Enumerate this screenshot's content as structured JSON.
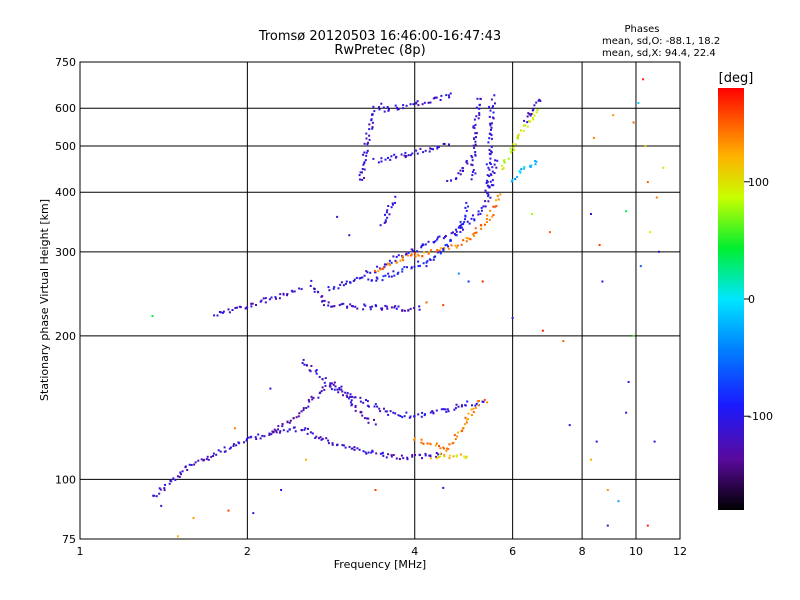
{
  "chart_data": {
    "type": "scatter",
    "title": "Tromsø 20120503 16:46:00-16:47:43",
    "subtitle": "RwPretec (8p)",
    "xlabel": "Frequency [MHz]",
    "ylabel": "Stationary phase Virtual Height [km]",
    "x_scale": "log",
    "y_scale": "log",
    "xlim": [
      1,
      12
    ],
    "ylim": [
      75,
      750
    ],
    "x_ticks": [
      1,
      2,
      4,
      6,
      8,
      10,
      12
    ],
    "y_ticks": [
      75,
      100,
      200,
      300,
      400,
      500,
      600,
      750
    ],
    "grid": true,
    "phases_box": {
      "title": "Phases",
      "line1": "mean, sd,O: -88.1, 18.2",
      "line2": "mean, sd,X:  94.4, 22.4"
    },
    "colorbar": {
      "label": "[deg]",
      "range": [
        -180,
        180
      ],
      "ticks": [
        100,
        0,
        -100
      ]
    },
    "traces": [
      {
        "x": [
          1.35,
          1.6,
          1.9,
          2.1,
          2.3,
          2.5,
          2.7,
          3.0,
          3.3,
          3.6,
          3.9,
          4.2,
          4.5
        ],
        "y": [
          92,
          108,
          118,
          123,
          126,
          128,
          122,
          117,
          114,
          112,
          111,
          112,
          113
        ],
        "phase": -115
      },
      {
        "x": [
          2.5,
          2.7,
          3.0,
          3.3,
          3.6,
          3.9,
          4.2,
          4.6,
          5.0,
          5.4
        ],
        "y": [
          178,
          165,
          152,
          144,
          138,
          136,
          137,
          140,
          144,
          144
        ],
        "phase": -110
      },
      {
        "x": [
          2.2,
          2.4,
          2.6,
          2.8,
          3.0,
          3.2,
          3.4
        ],
        "y": [
          125,
          133,
          145,
          158,
          150,
          138,
          130
        ],
        "phase": -120
      },
      {
        "x": [
          4.3,
          4.6,
          5.0
        ],
        "y": [
          112,
          112,
          112
        ],
        "phase": 110
      },
      {
        "x": [
          4.0,
          4.3,
          4.6,
          5.2,
          5.4
        ],
        "y": [
          121,
          118,
          116,
          145,
          147
        ],
        "phase": 140
      },
      {
        "x": [
          1.75,
          1.9,
          2.1,
          2.3,
          2.5
        ],
        "y": [
          222,
          228,
          235,
          242,
          250
        ],
        "phase": -115
      },
      {
        "x": [
          2.6,
          2.75,
          3.0,
          3.3,
          3.6,
          3.9,
          4.1
        ],
        "y": [
          258,
          234,
          230,
          230,
          229,
          228,
          229
        ],
        "phase": -115
      },
      {
        "x": [
          2.8,
          3.1,
          3.4,
          3.7,
          4.0,
          4.4,
          4.7,
          5.0,
          5.3,
          5.5,
          5.6
        ],
        "y": [
          250,
          262,
          275,
          290,
          303,
          317,
          330,
          345,
          370,
          410,
          470
        ],
        "phase": -105
      },
      {
        "x": [
          3.4,
          3.8,
          4.2,
          4.6,
          5.0,
          5.3,
          5.5,
          5.7
        ],
        "y": [
          275,
          290,
          298,
          305,
          320,
          340,
          362,
          400
        ],
        "phase": 140
      },
      {
        "x": [
          3.3,
          3.6,
          3.9,
          4.2,
          4.5,
          4.8,
          5.0
        ],
        "y": [
          260,
          268,
          277,
          287,
          300,
          330,
          380
        ],
        "phase": -90
      },
      {
        "x": [
          3.2,
          3.25,
          3.3,
          3.35,
          3.4,
          3.5
        ],
        "y": [
          420,
          470,
          520,
          560,
          600,
          610
        ],
        "phase": -115
      },
      {
        "x": [
          3.5,
          3.8,
          4.1,
          4.4,
          4.7
        ],
        "y": [
          595,
          605,
          615,
          628,
          640
        ],
        "phase": -110
      },
      {
        "x": [
          3.4,
          3.7,
          4.0,
          4.3,
          4.6
        ],
        "y": [
          465,
          475,
          485,
          495,
          505
        ],
        "phase": -110
      },
      {
        "x": [
          3.5,
          3.6,
          3.7
        ],
        "y": [
          340,
          370,
          390
        ],
        "phase": -110
      },
      {
        "x": [
          4.6,
          4.8,
          5.0
        ],
        "y": [
          420,
          440,
          470
        ],
        "phase": -110
      },
      {
        "x": [
          5.1,
          5.1,
          5.15,
          5.2,
          5.25
        ],
        "y": [
          430,
          500,
          560,
          610,
          640
        ],
        "phase": -110
      },
      {
        "x": [
          5.4,
          5.45,
          5.5,
          5.5,
          5.55
        ],
        "y": [
          400,
          470,
          540,
          600,
          640
        ],
        "phase": -105
      },
      {
        "x": [
          5.7,
          5.9,
          6.1,
          6.4,
          6.7
        ],
        "y": [
          450,
          480,
          520,
          560,
          600
        ],
        "phase": 90
      },
      {
        "x": [
          6.3,
          6.5,
          6.6,
          6.8
        ],
        "y": [
          560,
          590,
          610,
          630
        ],
        "phase": -110
      },
      {
        "x": [
          6.0,
          6.3,
          6.7
        ],
        "y": [
          420,
          450,
          470
        ],
        "phase": -20
      }
    ],
    "scatter_points": [
      {
        "x": 1.4,
        "y": 88,
        "phase": -120
      },
      {
        "x": 1.6,
        "y": 83,
        "phase": 130
      },
      {
        "x": 1.85,
        "y": 86,
        "phase": 160
      },
      {
        "x": 2.05,
        "y": 85,
        "phase": -110
      },
      {
        "x": 2.3,
        "y": 95,
        "phase": -100
      },
      {
        "x": 1.5,
        "y": 76,
        "phase": 120
      },
      {
        "x": 1.35,
        "y": 220,
        "phase": 40
      },
      {
        "x": 2.9,
        "y": 355,
        "phase": -110
      },
      {
        "x": 3.05,
        "y": 325,
        "phase": -120
      },
      {
        "x": 4.2,
        "y": 235,
        "phase": 150
      },
      {
        "x": 4.5,
        "y": 232,
        "phase": 160
      },
      {
        "x": 5.3,
        "y": 260,
        "phase": 170
      },
      {
        "x": 6.0,
        "y": 218,
        "phase": -110
      },
      {
        "x": 6.5,
        "y": 360,
        "phase": 80
      },
      {
        "x": 7.0,
        "y": 330,
        "phase": 150
      },
      {
        "x": 7.4,
        "y": 195,
        "phase": 150
      },
      {
        "x": 6.8,
        "y": 205,
        "phase": 170
      },
      {
        "x": 7.6,
        "y": 130,
        "phase": -110
      },
      {
        "x": 8.3,
        "y": 110,
        "phase": 120
      },
      {
        "x": 8.5,
        "y": 120,
        "phase": -100
      },
      {
        "x": 8.9,
        "y": 95,
        "phase": 130
      },
      {
        "x": 8.9,
        "y": 80,
        "phase": -110
      },
      {
        "x": 9.3,
        "y": 90,
        "phase": -30
      },
      {
        "x": 9.6,
        "y": 138,
        "phase": -110
      },
      {
        "x": 9.9,
        "y": 200,
        "phase": 60
      },
      {
        "x": 9.7,
        "y": 160,
        "phase": -100
      },
      {
        "x": 10.1,
        "y": 615,
        "phase": -10
      },
      {
        "x": 9.9,
        "y": 560,
        "phase": 150
      },
      {
        "x": 10.4,
        "y": 500,
        "phase": 110
      },
      {
        "x": 10.5,
        "y": 420,
        "phase": 150
      },
      {
        "x": 10.9,
        "y": 390,
        "phase": 140
      },
      {
        "x": 11.0,
        "y": 300,
        "phase": -110
      },
      {
        "x": 10.6,
        "y": 330,
        "phase": 90
      },
      {
        "x": 10.2,
        "y": 280,
        "phase": -60
      },
      {
        "x": 10.8,
        "y": 120,
        "phase": -100
      },
      {
        "x": 10.5,
        "y": 80,
        "phase": 170
      },
      {
        "x": 10.3,
        "y": 690,
        "phase": 170
      },
      {
        "x": 11.2,
        "y": 450,
        "phase": 100
      },
      {
        "x": 9.1,
        "y": 580,
        "phase": 130
      },
      {
        "x": 8.4,
        "y": 520,
        "phase": 140
      },
      {
        "x": 8.6,
        "y": 310,
        "phase": 160
      },
      {
        "x": 8.7,
        "y": 260,
        "phase": -100
      },
      {
        "x": 8.3,
        "y": 360,
        "phase": -110
      },
      {
        "x": 9.6,
        "y": 365,
        "phase": 40
      },
      {
        "x": 4.2,
        "y": 280,
        "phase": -110
      },
      {
        "x": 4.8,
        "y": 270,
        "phase": -40
      },
      {
        "x": 5.0,
        "y": 260,
        "phase": -80
      },
      {
        "x": 2.2,
        "y": 155,
        "phase": -110
      },
      {
        "x": 1.9,
        "y": 128,
        "phase": 140
      },
      {
        "x": 2.55,
        "y": 110,
        "phase": 120
      },
      {
        "x": 3.4,
        "y": 95,
        "phase": 160
      },
      {
        "x": 4.5,
        "y": 96,
        "phase": -110
      }
    ]
  }
}
